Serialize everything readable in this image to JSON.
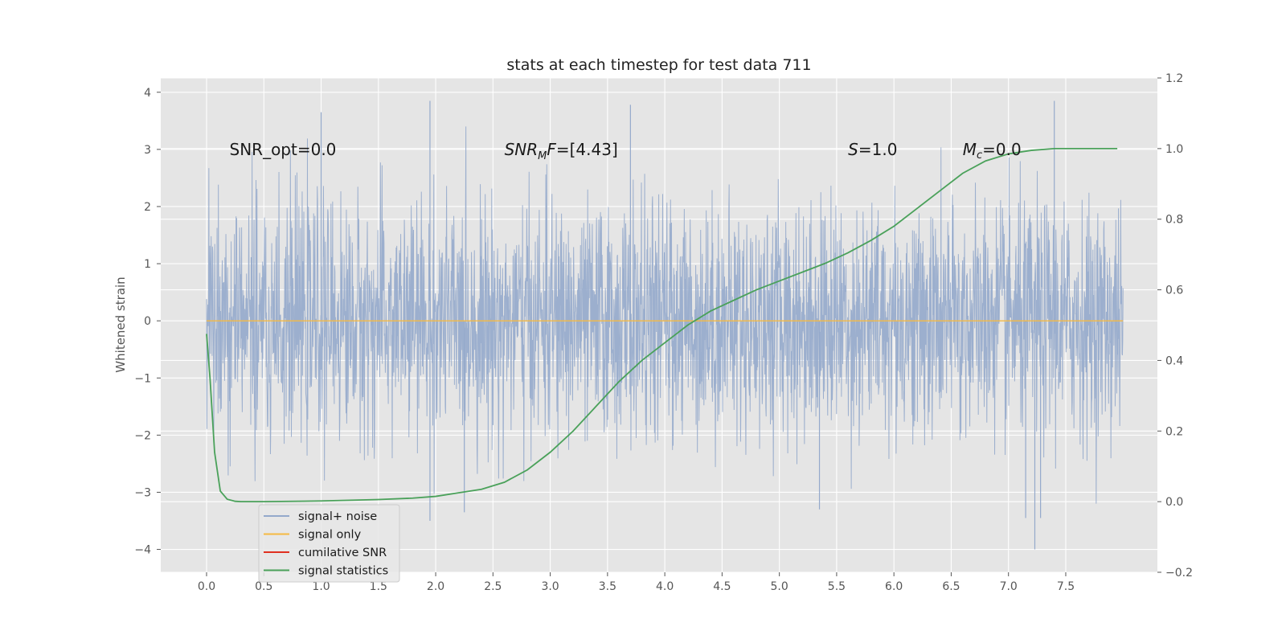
{
  "chart_data": {
    "type": "line",
    "title": "stats at each timestep for test data 711",
    "xlabel": "",
    "ylabel": "Whitened strain",
    "y2label": "",
    "xlim": [
      -0.4,
      8.3
    ],
    "ylim": [
      -4.4,
      4.25
    ],
    "y2lim": [
      -0.2,
      1.2
    ],
    "xticks": [
      "0.0",
      "0.5",
      "1.0",
      "1.5",
      "2.0",
      "2.5",
      "3.0",
      "3.5",
      "4.0",
      "4.5",
      "5.0",
      "5.5",
      "6.0",
      "6.5",
      "7.0",
      "7.5"
    ],
    "yticks": [
      "−4",
      "−3",
      "−2",
      "−1",
      "0",
      "1",
      "2",
      "3",
      "4"
    ],
    "y2ticks": [
      "−0.2",
      "0.0",
      "0.2",
      "0.4",
      "0.6",
      "0.8",
      "1.0",
      "1.2"
    ],
    "grid": true,
    "legend_position": "lower-left",
    "annotations": {
      "snr_opt": {
        "text": "SNR_opt=0.0",
        "x": 0.2,
        "y": 3.0
      },
      "snr_mf": {
        "base": "SNR",
        "sub": "M",
        "rest": "F=[4.43]",
        "x": 2.6,
        "y": 3.0
      },
      "s": {
        "sym": "S",
        "rest": "=1.0",
        "x": 5.6,
        "y": 3.0
      },
      "mc": {
        "sym": "M",
        "sub": "c",
        "rest": "=0.0",
        "x": 6.6,
        "y": 3.0
      }
    },
    "series": [
      {
        "name": "signal+ noise",
        "axis": "left",
        "color": "#94a9cb",
        "description": "whitened noisy strain, values approximately within [-4, 3.9]",
        "x_range": [
          0.0,
          8.0
        ],
        "approx_std": 1.0,
        "extremes": [
          [
            1.0,
            3.65
          ],
          [
            1.95,
            3.85
          ],
          [
            3.7,
            3.78
          ],
          [
            7.4,
            3.85
          ],
          [
            1.95,
            -3.5
          ],
          [
            7.15,
            -3.45
          ],
          [
            7.23,
            -4.0
          ],
          [
            7.28,
            -3.45
          ],
          [
            2.25,
            -3.35
          ],
          [
            5.35,
            -3.3
          ]
        ]
      },
      {
        "name": "signal only",
        "axis": "left",
        "color": "#f5b942",
        "x": [
          0.0,
          8.0
        ],
        "y": [
          0.0,
          0.0
        ]
      },
      {
        "name": "cumilative SNR",
        "axis": "right",
        "color": "#e03020",
        "x": [],
        "y": []
      },
      {
        "name": "signal statistics",
        "axis": "right",
        "color": "#4aa15a",
        "x": [
          0.0,
          0.03,
          0.07,
          0.12,
          0.18,
          0.25,
          0.3,
          0.5,
          1.0,
          1.5,
          1.8,
          2.0,
          2.2,
          2.4,
          2.6,
          2.8,
          3.0,
          3.2,
          3.4,
          3.6,
          3.8,
          4.0,
          4.2,
          4.4,
          4.6,
          4.8,
          5.0,
          5.2,
          5.4,
          5.6,
          5.8,
          6.0,
          6.2,
          6.4,
          6.6,
          6.8,
          7.0,
          7.2,
          7.4,
          7.6,
          7.8,
          7.95
        ],
        "y": [
          0.475,
          0.35,
          0.14,
          0.03,
          0.007,
          0.001,
          0.0,
          0.0,
          0.002,
          0.006,
          0.01,
          0.015,
          0.025,
          0.035,
          0.055,
          0.09,
          0.14,
          0.2,
          0.27,
          0.34,
          0.4,
          0.45,
          0.5,
          0.54,
          0.57,
          0.6,
          0.625,
          0.65,
          0.675,
          0.705,
          0.74,
          0.78,
          0.83,
          0.88,
          0.93,
          0.965,
          0.985,
          0.995,
          1.0,
          1.0,
          1.0,
          1.0
        ]
      }
    ]
  }
}
